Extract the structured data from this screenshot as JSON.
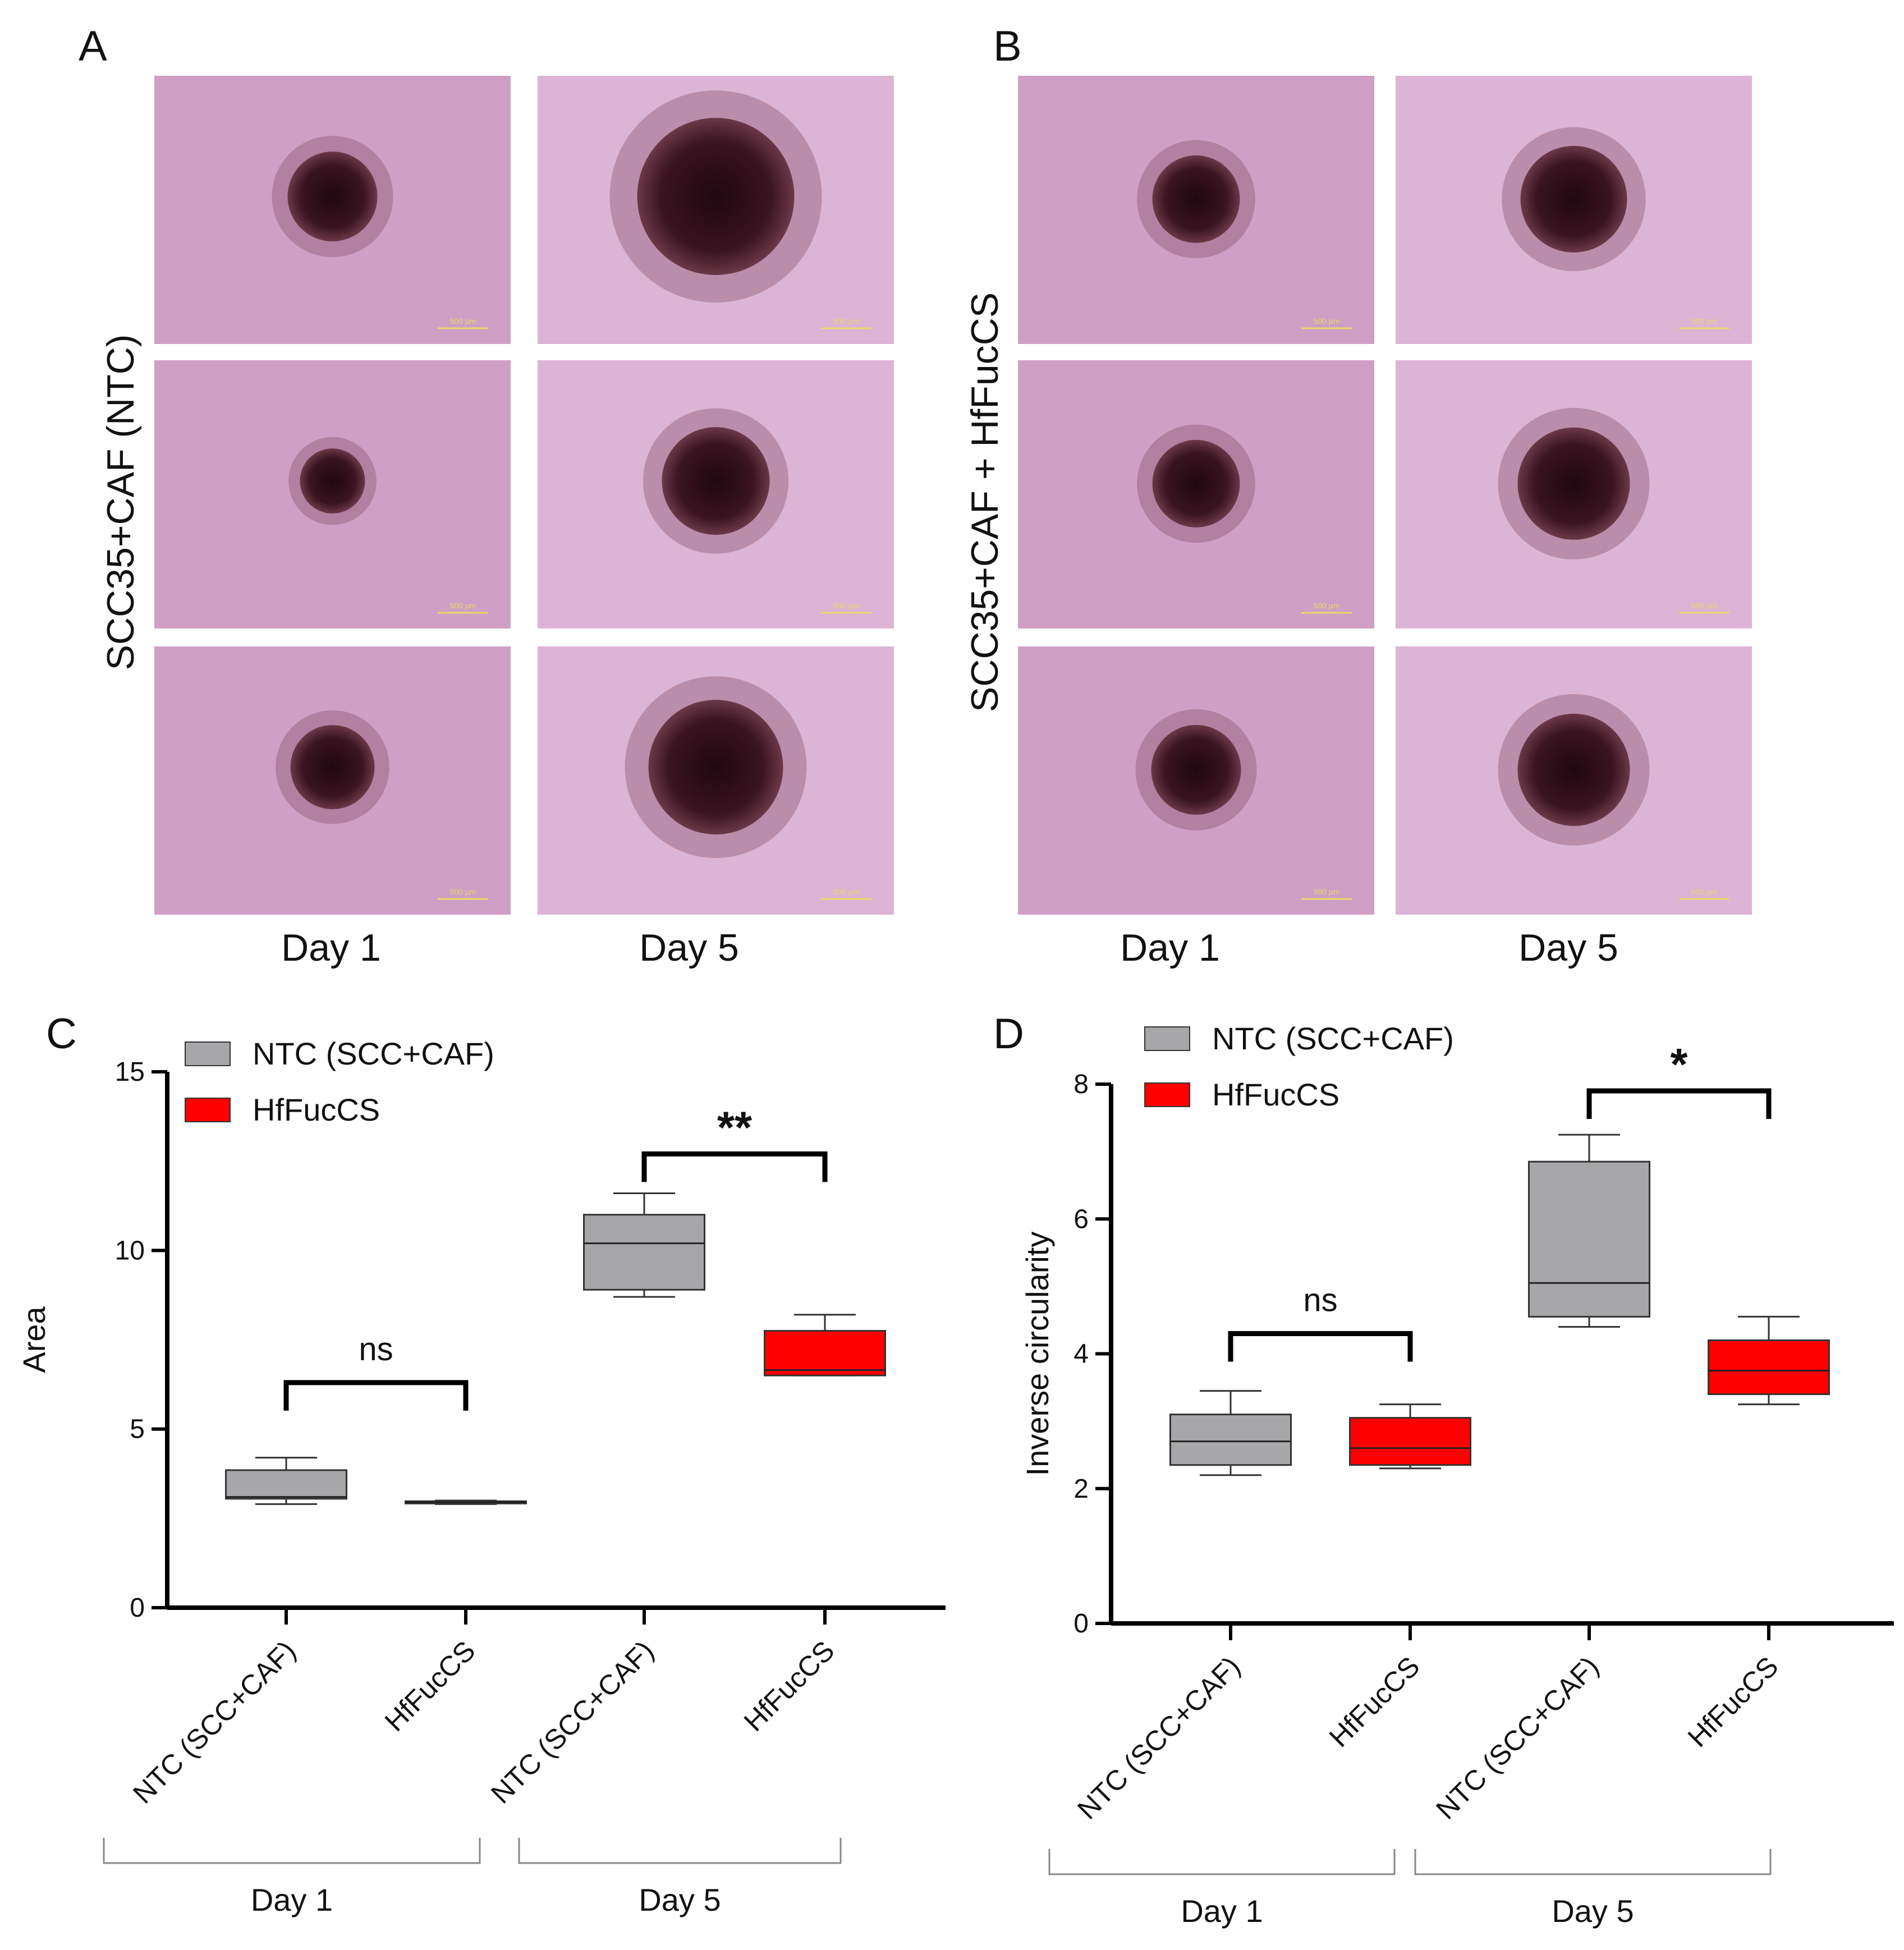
{
  "panels": {
    "A": {
      "letter": "A",
      "group_label": "SCC35+CAF (NTC)",
      "columns": [
        "Day 1",
        "Day 5"
      ],
      "scale_bar": "500 µm"
    },
    "B": {
      "letter": "B",
      "group_label": "SCC35+CAF + HfFucCS",
      "columns": [
        "Day 1",
        "Day 5"
      ],
      "scale_bar": "500 µm"
    }
  },
  "colors": {
    "ntc": "#a7a7aa",
    "hffuccs": "#ff0000",
    "micro_bg_a": "#cf9fc6",
    "micro_bg_b": "#dcb4d6",
    "spheroid": "#3a1420"
  },
  "chart_data": [
    {
      "panel": "C",
      "type": "box",
      "ylabel": "Area",
      "ylim": [
        0,
        15
      ],
      "yticks": [
        0,
        5,
        10,
        15
      ],
      "legend": [
        "NTC (SCC+CAF)",
        "HfFucCS"
      ],
      "legend_position": "top-left",
      "categories": [
        "NTC (SCC+CAF)",
        "HfFucCS",
        "NTC (SCC+CAF)",
        "HfFucCS"
      ],
      "groups": [
        {
          "label": "Day 1",
          "categories": [
            0,
            1
          ]
        },
        {
          "label": "Day 5",
          "categories": [
            2,
            3
          ]
        }
      ],
      "boxes": [
        {
          "series": "NTC (SCC+CAF)",
          "min": 2.9,
          "q1": 3.05,
          "median": 3.1,
          "q3": 3.85,
          "max": 4.2
        },
        {
          "series": "HfFucCS",
          "min": 2.9,
          "q1": 2.93,
          "median": 2.95,
          "q3": 2.98,
          "max": 3.0
        },
        {
          "series": "NTC (SCC+CAF)",
          "min": 8.7,
          "q1": 8.9,
          "median": 10.2,
          "q3": 11.0,
          "max": 11.6
        },
        {
          "series": "HfFucCS",
          "min": 6.5,
          "q1": 6.5,
          "median": 6.65,
          "q3": 7.75,
          "max": 8.2
        }
      ],
      "significance": [
        {
          "between": [
            0,
            1
          ],
          "label": "ns",
          "y": 6.3
        },
        {
          "between": [
            2,
            3
          ],
          "label": "**",
          "y": 12.7
        }
      ]
    },
    {
      "panel": "D",
      "type": "box",
      "ylabel": "Inverse circularity",
      "ylim": [
        0,
        8
      ],
      "yticks": [
        0,
        2,
        4,
        6,
        8
      ],
      "legend": [
        "NTC (SCC+CAF)",
        "HfFucCS"
      ],
      "legend_position": "top-left",
      "categories": [
        "NTC (SCC+CAF)",
        "HfFucCS",
        "NTC (SCC+CAF)",
        "HfFucCS"
      ],
      "groups": [
        {
          "label": "Day 1",
          "categories": [
            0,
            1
          ]
        },
        {
          "label": "Day 5",
          "categories": [
            2,
            3
          ]
        }
      ],
      "boxes": [
        {
          "series": "NTC (SCC+CAF)",
          "min": 2.2,
          "q1": 2.35,
          "median": 2.7,
          "q3": 3.1,
          "max": 3.45
        },
        {
          "series": "HfFucCS",
          "min": 2.3,
          "q1": 2.35,
          "median": 2.6,
          "q3": 3.05,
          "max": 3.25
        },
        {
          "series": "NTC (SCC+CAF)",
          "min": 4.4,
          "q1": 4.55,
          "median": 5.05,
          "q3": 6.85,
          "max": 7.25
        },
        {
          "series": "HfFucCS",
          "min": 3.25,
          "q1": 3.4,
          "median": 3.75,
          "q3": 4.2,
          "max": 4.55
        }
      ],
      "significance": [
        {
          "between": [
            0,
            1
          ],
          "label": "ns",
          "y": 4.3
        },
        {
          "between": [
            2,
            3
          ],
          "label": "*",
          "y": 7.9
        }
      ]
    }
  ]
}
